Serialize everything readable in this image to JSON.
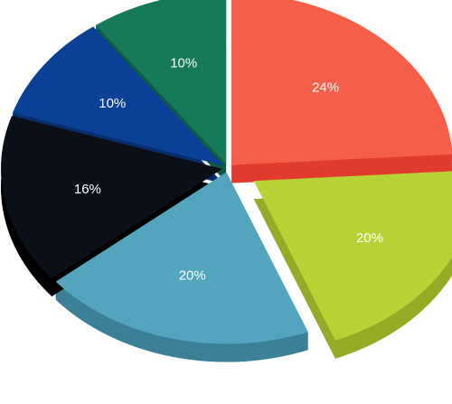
{
  "chart_data": {
    "type": "pie",
    "title": "",
    "slices": [
      {
        "label": "24%",
        "value": 24,
        "color": "#f55f4a",
        "side_color": "#e13b2f",
        "exploded": false
      },
      {
        "label": "20%",
        "value": 20,
        "color": "#b7d234",
        "side_color": "#93ab25",
        "exploded": true
      },
      {
        "label": "20%",
        "value": 20,
        "color": "#52a5bc",
        "side_color": "#3b8097",
        "exploded": false
      },
      {
        "label": "16%",
        "value": 16,
        "color": "#0b0f17",
        "side_color": "#000000",
        "exploded": false
      },
      {
        "label": "10%",
        "value": 10,
        "color": "#0a4196",
        "side_color": "#062e70",
        "exploded": false
      },
      {
        "label": "10%",
        "value": 10,
        "color": "#167a5a",
        "side_color": "#0e5a42",
        "exploded": false
      }
    ]
  }
}
